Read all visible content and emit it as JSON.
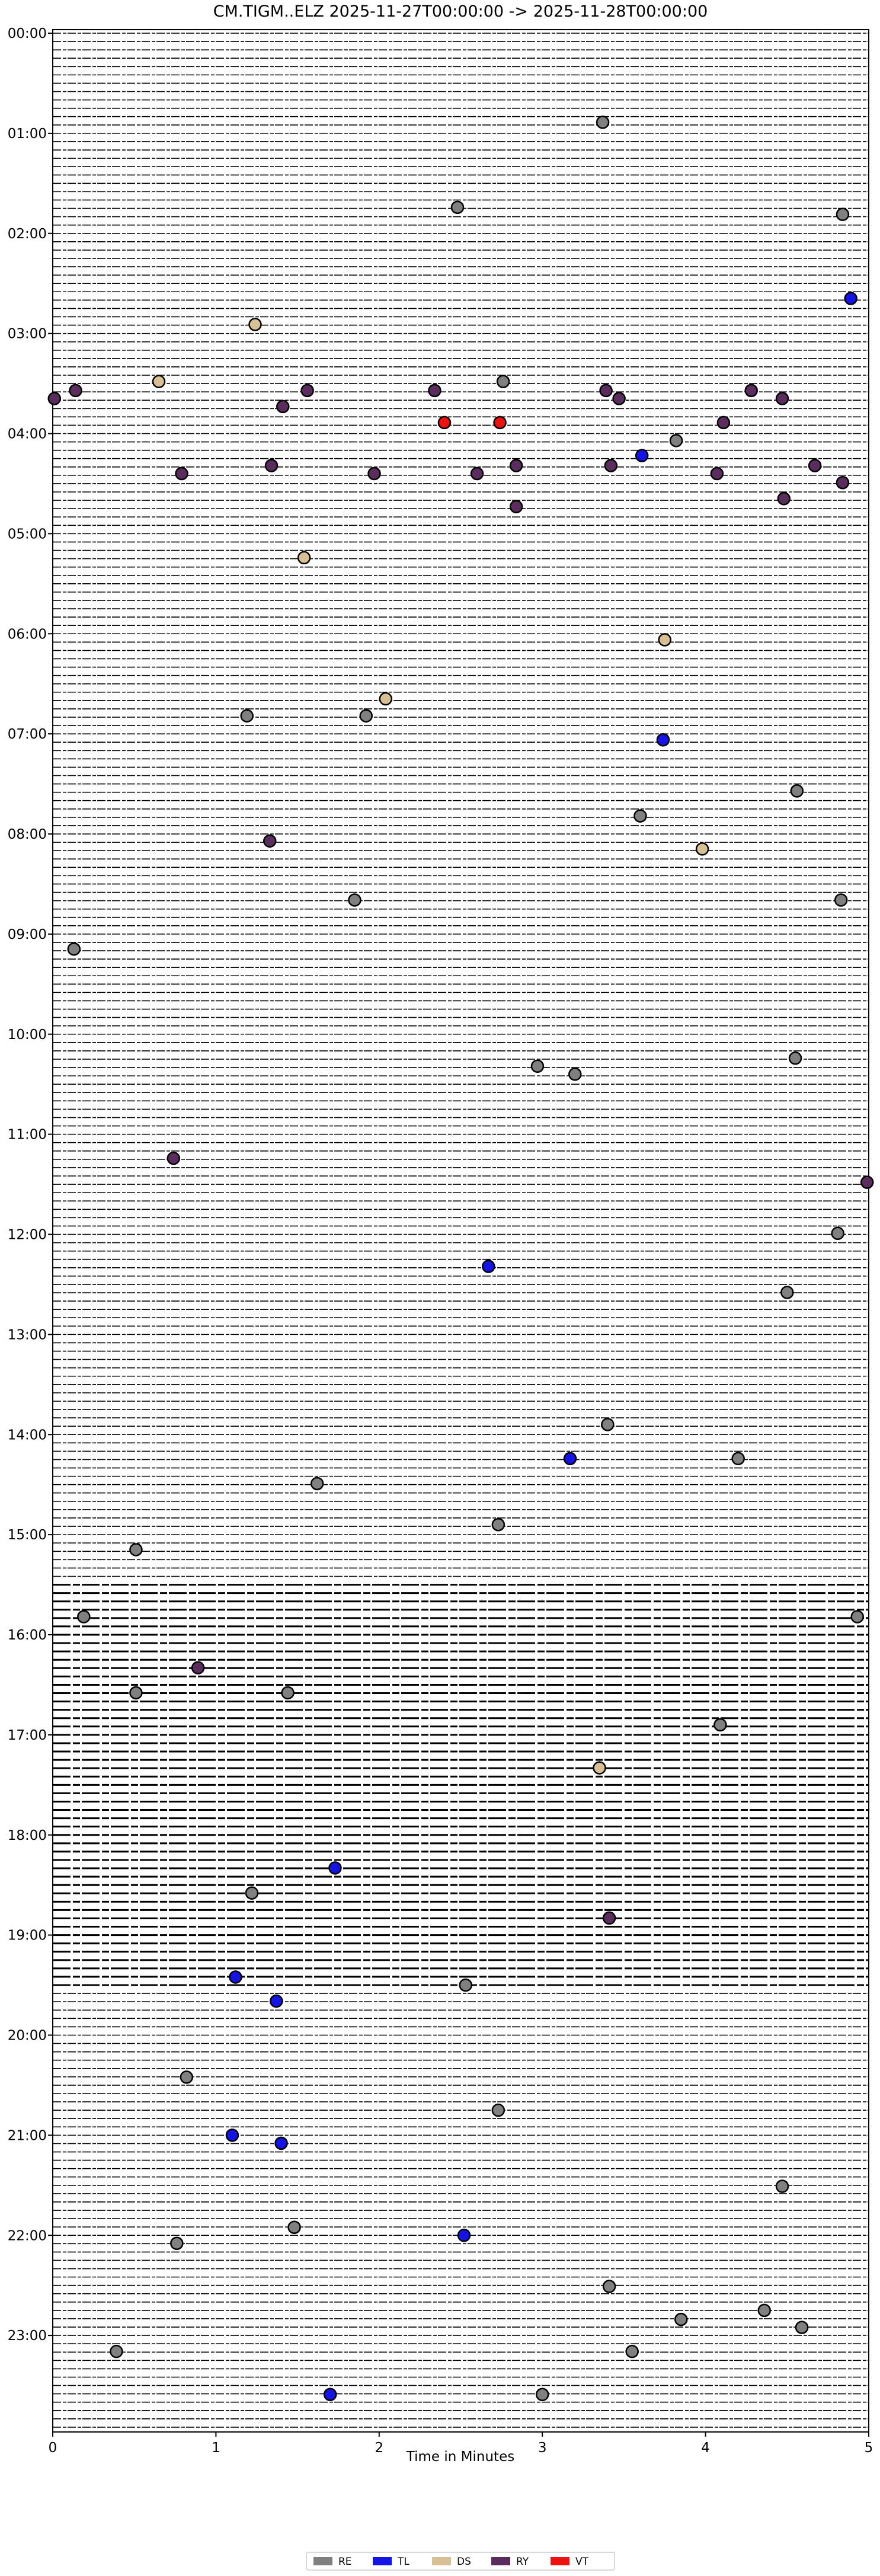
{
  "chart_data": {
    "type": "scatter",
    "title": "CM.TIGM..ELZ  2025-11-27T00:00:00 -> 2025-11-28T00:00:00",
    "x_label": "Time in Minutes",
    "xlim": [
      0,
      5
    ],
    "xticks": [
      0,
      1,
      2,
      3,
      4,
      5
    ],
    "ylim": [
      0,
      24
    ],
    "yticks": [
      {
        "value": 0,
        "label": "00:00"
      },
      {
        "value": 1,
        "label": "01:00"
      },
      {
        "value": 2,
        "label": "02:00"
      },
      {
        "value": 3,
        "label": "03:00"
      },
      {
        "value": 4,
        "label": "04:00"
      },
      {
        "value": 5,
        "label": "05:00"
      },
      {
        "value": 6,
        "label": "06:00"
      },
      {
        "value": 7,
        "label": "07:00"
      },
      {
        "value": 8,
        "label": "08:00"
      },
      {
        "value": 9,
        "label": "09:00"
      },
      {
        "value": 10,
        "label": "10:00"
      },
      {
        "value": 11,
        "label": "11:00"
      },
      {
        "value": 12,
        "label": "12:00"
      },
      {
        "value": 13,
        "label": "13:00"
      },
      {
        "value": 14,
        "label": "14:00"
      },
      {
        "value": 15,
        "label": "15:00"
      },
      {
        "value": 16,
        "label": "16:00"
      },
      {
        "value": 17,
        "label": "17:00"
      },
      {
        "value": 18,
        "label": "18:00"
      },
      {
        "value": 19,
        "label": "19:00"
      },
      {
        "value": 20,
        "label": "20:00"
      },
      {
        "value": 21,
        "label": "21:00"
      },
      {
        "value": 22,
        "label": "22:00"
      },
      {
        "value": 23,
        "label": "23:00"
      }
    ],
    "legend": "bottom",
    "series": [
      {
        "name": "RE",
        "color": "#808080",
        "x": [
          3.37,
          2.48,
          4.84,
          2.76,
          3.82,
          1.19,
          1.92,
          4.56,
          3.6,
          1.85,
          4.83,
          0.13,
          2.97,
          3.2,
          4.55,
          4.81,
          4.5,
          3.4,
          4.2,
          1.62,
          2.73,
          0.51,
          0.19,
          4.93,
          0.51,
          1.44,
          4.09,
          1.22,
          2.53,
          0.82,
          2.73,
          4.47,
          1.48,
          0.76,
          3.41,
          4.36,
          3.85,
          4.59,
          0.39,
          3.55,
          3.0
        ],
        "values": [
          0.89,
          1.74,
          1.81,
          3.48,
          4.07,
          6.82,
          6.82,
          7.57,
          7.82,
          8.66,
          8.66,
          9.15,
          10.32,
          10.4,
          10.24,
          11.99,
          12.58,
          13.9,
          14.24,
          14.49,
          14.9,
          15.15,
          15.82,
          15.82,
          16.58,
          16.58,
          16.9,
          18.58,
          19.5,
          20.42,
          20.75,
          21.51,
          21.92,
          22.08,
          22.51,
          22.75,
          22.84,
          22.92,
          23.16,
          23.16,
          23.59
        ]
      },
      {
        "name": "TL",
        "color": "#1414e6",
        "x": [
          4.89,
          3.61,
          3.74,
          2.67,
          3.17,
          1.73,
          1.12,
          1.37,
          1.1,
          1.4,
          2.52,
          1.7
        ],
        "values": [
          2.65,
          4.22,
          7.06,
          12.32,
          14.24,
          18.33,
          19.42,
          19.66,
          21.0,
          21.08,
          22.0,
          23.59
        ]
      },
      {
        "name": "DS",
        "color": "#d9bf94",
        "x": [
          1.24,
          0.65,
          1.54,
          3.75,
          2.04,
          3.98,
          3.35
        ],
        "values": [
          2.91,
          3.48,
          5.24,
          6.06,
          6.65,
          8.15,
          17.33
        ]
      },
      {
        "name": "RY",
        "color": "#5a2d5e",
        "x": [
          0.01,
          0.14,
          1.56,
          2.34,
          3.39,
          4.28,
          3.47,
          4.47,
          1.41,
          4.11,
          0.79,
          1.34,
          1.97,
          2.6,
          2.84,
          3.42,
          4.07,
          4.67,
          4.84,
          4.48,
          2.84,
          1.33,
          0.74,
          4.99,
          0.89,
          3.41
        ],
        "values": [
          3.65,
          3.57,
          3.57,
          3.57,
          3.57,
          3.57,
          3.65,
          3.65,
          3.73,
          3.89,
          4.4,
          4.32,
          4.4,
          4.4,
          4.32,
          4.32,
          4.4,
          4.32,
          4.49,
          4.65,
          4.73,
          8.07,
          11.24,
          11.48,
          16.33,
          18.83
        ]
      },
      {
        "name": "VT",
        "color": "#ee1111",
        "x": [
          2.4,
          2.74
        ],
        "values": [
          3.89,
          3.89
        ]
      }
    ]
  }
}
